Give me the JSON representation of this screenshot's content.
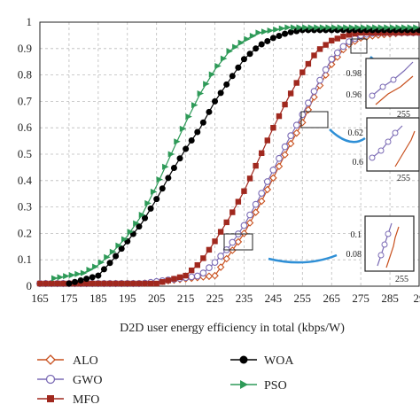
{
  "chart_data": {
    "type": "line",
    "title": "",
    "xlabel": "D2D user energy efficiency in total (kbps/W)",
    "ylabel": "",
    "xlim": [
      165,
      295
    ],
    "ylim": [
      0,
      1
    ],
    "x_ticks": [
      "165",
      "175",
      "185",
      "195",
      "205",
      "215",
      "225",
      "235",
      "245",
      "255",
      "265",
      "275",
      "285",
      "29"
    ],
    "y_ticks": [
      "0",
      "0.1",
      "0.2",
      "0.3",
      "0.4",
      "0.5",
      "0.6",
      "0.7",
      "0.8",
      "0.9",
      "1"
    ],
    "grid": true,
    "legend_position": "below",
    "series": [
      {
        "name": "ALO",
        "color": "#c8501e",
        "marker": "open-diamond",
        "x": [
          165,
          200,
          225,
          230,
          235,
          240,
          245,
          250,
          255,
          260,
          265,
          270,
          275,
          280,
          290,
          295
        ],
        "y": [
          0.01,
          0.01,
          0.04,
          0.12,
          0.2,
          0.3,
          0.41,
          0.52,
          0.62,
          0.74,
          0.84,
          0.91,
          0.94,
          0.95,
          0.96,
          0.96
        ]
      },
      {
        "name": "GWO",
        "color": "#7b6bb5",
        "marker": "open-circle",
        "x": [
          165,
          200,
          220,
          225,
          230,
          235,
          240,
          245,
          250,
          255,
          260,
          265,
          270,
          275,
          280,
          290,
          295
        ],
        "y": [
          0.01,
          0.01,
          0.04,
          0.09,
          0.15,
          0.23,
          0.33,
          0.44,
          0.55,
          0.65,
          0.76,
          0.86,
          0.92,
          0.95,
          0.96,
          0.96,
          0.96
        ]
      },
      {
        "name": "MFO",
        "color": "#a0281e",
        "marker": "filled-square",
        "x": [
          165,
          205,
          215,
          220,
          225,
          230,
          235,
          240,
          245,
          250,
          255,
          260,
          265,
          270,
          275,
          280,
          290,
          295
        ],
        "y": [
          0.01,
          0.01,
          0.04,
          0.09,
          0.17,
          0.26,
          0.36,
          0.48,
          0.6,
          0.71,
          0.81,
          0.89,
          0.93,
          0.95,
          0.96,
          0.96,
          0.96,
          0.96
        ]
      },
      {
        "name": "WOA",
        "color": "#000000",
        "marker": "filled-circle",
        "x": [
          175,
          185,
          190,
          195,
          200,
          205,
          210,
          215,
          220,
          225,
          230,
          235,
          240,
          245,
          250,
          255,
          260,
          270,
          280,
          295
        ],
        "y": [
          0.01,
          0.04,
          0.1,
          0.17,
          0.24,
          0.33,
          0.43,
          0.52,
          0.6,
          0.7,
          0.78,
          0.86,
          0.91,
          0.94,
          0.96,
          0.97,
          0.97,
          0.97,
          0.97,
          0.97
        ]
      },
      {
        "name": "PSO",
        "color": "#2e9a58",
        "marker": "filled-triangle-right",
        "x": [
          170,
          180,
          185,
          190,
          195,
          200,
          205,
          210,
          215,
          220,
          225,
          230,
          235,
          240,
          245,
          250,
          260,
          270,
          280,
          295
        ],
        "y": [
          0.03,
          0.05,
          0.08,
          0.13,
          0.19,
          0.27,
          0.38,
          0.5,
          0.62,
          0.73,
          0.82,
          0.89,
          0.93,
          0.96,
          0.97,
          0.98,
          0.98,
          0.98,
          0.98,
          0.98
        ]
      }
    ],
    "insets": [
      {
        "y_ticks": [
          "0.98",
          "0.96"
        ],
        "x_tick": "255"
      },
      {
        "y_ticks": [
          "0.62",
          "0.6"
        ],
        "x_tick": "255"
      },
      {
        "y_ticks": [
          "0.1",
          "0.08"
        ],
        "x_tick": "255"
      }
    ]
  },
  "legend": [
    {
      "label": "ALO"
    },
    {
      "label": "GWO"
    },
    {
      "label": "MFO"
    },
    {
      "label": "WOA"
    },
    {
      "label": "PSO"
    }
  ]
}
